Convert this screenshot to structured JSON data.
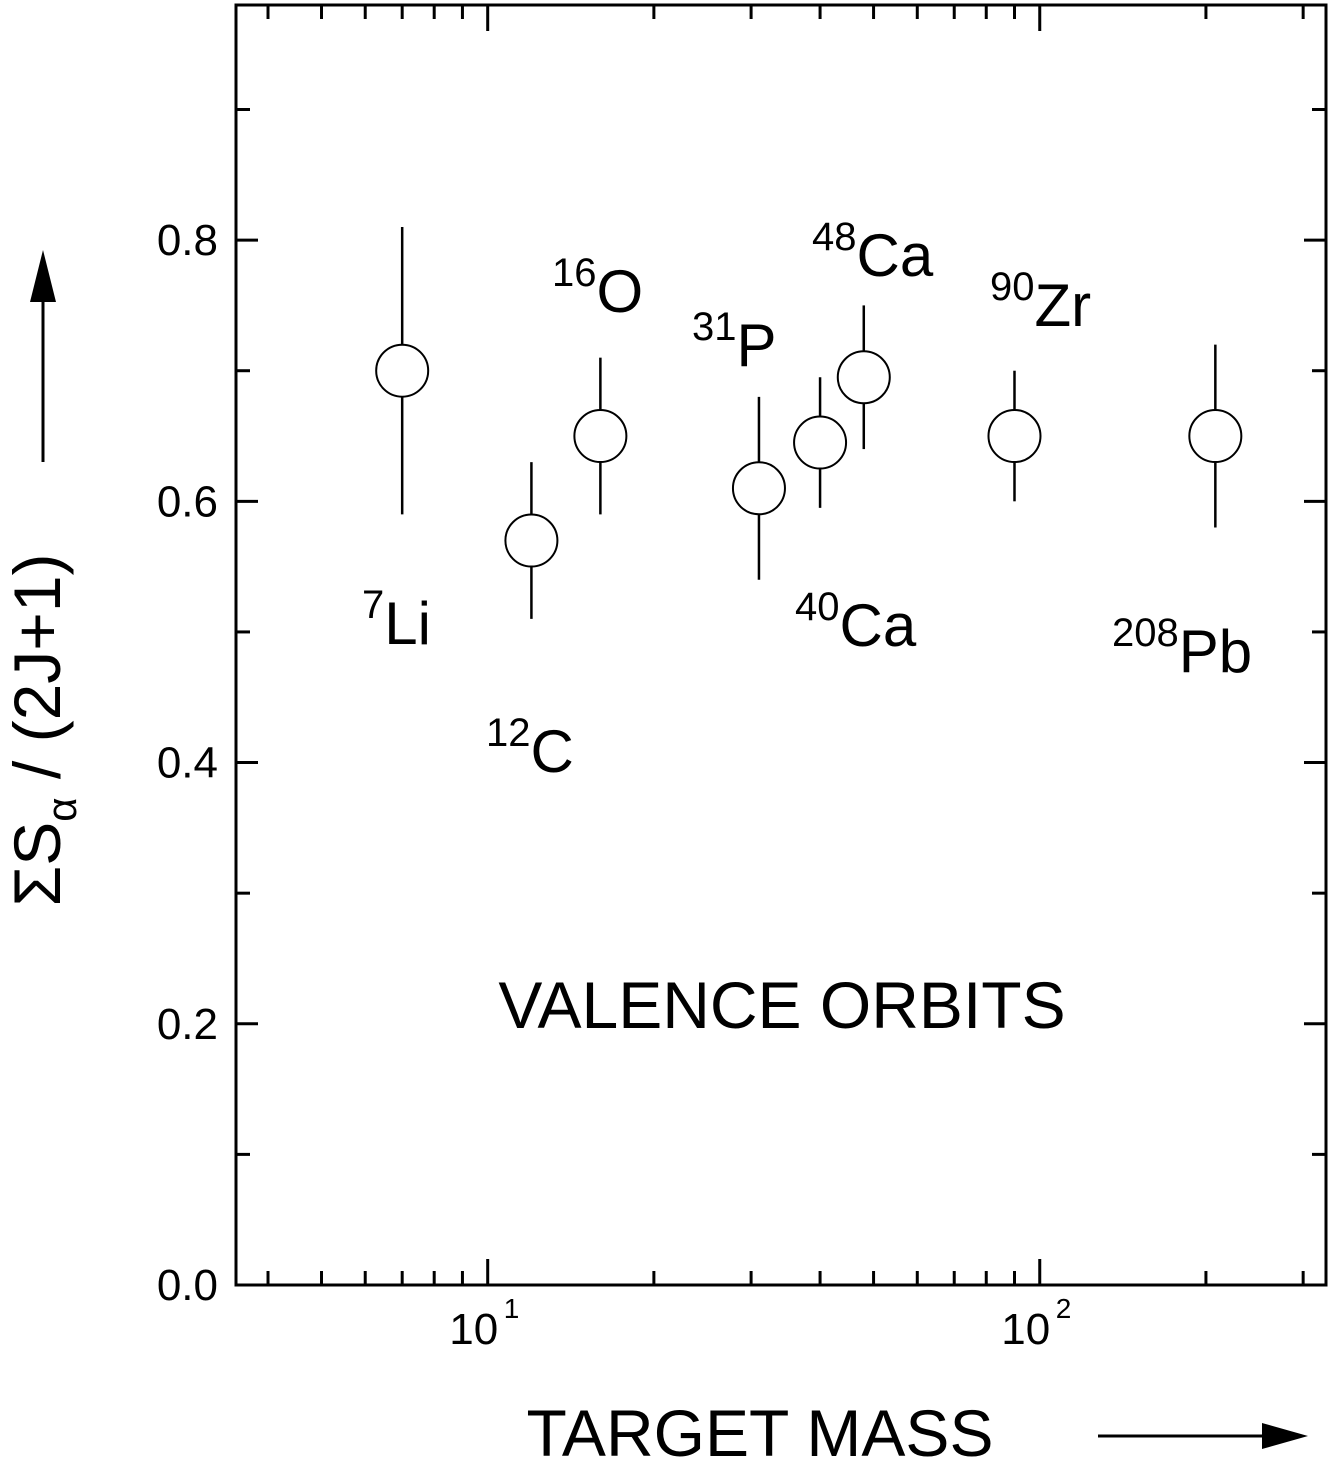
{
  "chart_data": {
    "type": "scatter",
    "title": "",
    "xlabel": "TARGET MASS",
    "ylabel": {
      "main": "ΣS",
      "subscript": "α",
      "suffix": " / (2J+1)"
    },
    "xscale": "log",
    "xlim": [
      3.5,
      330
    ],
    "ylim": [
      0.0,
      0.98
    ],
    "x_ticks": [
      {
        "value": 10,
        "base": "10",
        "exponent": "1"
      },
      {
        "value": 100,
        "base": "10",
        "exponent": "2"
      }
    ],
    "y_ticks": [
      "0.0",
      "0.2",
      "0.4",
      "0.6",
      "0.8"
    ],
    "annotation": "VALENCE ORBITS",
    "grid": false,
    "points": [
      {
        "nucleus": "Li",
        "mass_number": "7",
        "x": 7,
        "y": 0.7,
        "err_low": 0.59,
        "err_high": 0.81
      },
      {
        "nucleus": "C",
        "mass_number": "12",
        "x": 12,
        "y": 0.57,
        "err_low": 0.51,
        "err_high": 0.63
      },
      {
        "nucleus": "O",
        "mass_number": "16",
        "x": 16,
        "y": 0.65,
        "err_low": 0.59,
        "err_high": 0.71
      },
      {
        "nucleus": "P",
        "mass_number": "31",
        "x": 31,
        "y": 0.61,
        "err_low": 0.54,
        "err_high": 0.68
      },
      {
        "nucleus": "Ca",
        "mass_number": "40",
        "x": 40,
        "y": 0.645,
        "err_low": 0.595,
        "err_high": 0.695
      },
      {
        "nucleus": "Ca",
        "mass_number": "48",
        "x": 48,
        "y": 0.695,
        "err_low": 0.64,
        "err_high": 0.75
      },
      {
        "nucleus": "Zr",
        "mass_number": "90",
        "x": 90,
        "y": 0.65,
        "err_low": 0.6,
        "err_high": 0.7
      },
      {
        "nucleus": "Pb",
        "mass_number": "208",
        "x": 208,
        "y": 0.65,
        "err_low": 0.58,
        "err_high": 0.72
      }
    ]
  }
}
